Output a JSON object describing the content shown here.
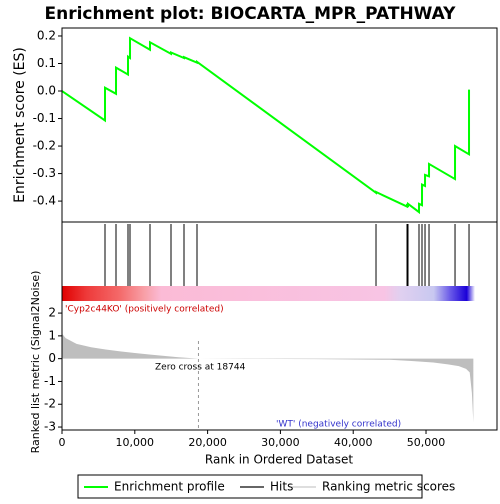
{
  "chart_data": [
    {
      "type": "line",
      "title": "Enrichment plot: BIOCARTA_MPR_PATHWAY",
      "ylabel": "Enrichment score (ES)",
      "xlim": [
        0,
        59750
      ],
      "ylim": [
        -0.476,
        0.229
      ],
      "yticks": [
        0.2,
        0.1,
        {
          "value": 0,
          "label": "0.0"
        },
        -0.1,
        -0.2,
        -0.3,
        -0.4
      ],
      "series": [
        {
          "name": "Enrichment profile",
          "color": "#00ff00",
          "x": [
            0,
            5907,
            5907,
            7418,
            7418,
            9066,
            9066,
            9341,
            9341,
            12088,
            12088,
            14973,
            14973,
            16758,
            16758,
            18544,
            18544,
            43132,
            43132,
            47390,
            47390,
            47527,
            47527,
            49038,
            49038,
            49450,
            49450,
            49863,
            49863,
            50412,
            50412,
            53984,
            53984,
            55907,
            55907
          ],
          "values": [
            0,
            -0.107,
            0.012,
            -0.01,
            0.085,
            0.06,
            0.125,
            0.12,
            0.192,
            0.15,
            0.177,
            0.135,
            0.14,
            0.12,
            0.123,
            0.103,
            0.106,
            -0.37,
            -0.367,
            -0.42,
            -0.415,
            -0.417,
            -0.41,
            -0.44,
            -0.41,
            -0.415,
            -0.34,
            -0.345,
            -0.305,
            -0.31,
            -0.265,
            -0.32,
            -0.2,
            -0.23,
            0.005
          ]
        }
      ]
    },
    {
      "type": "hits",
      "xlim": [
        0,
        59750
      ],
      "series": [
        {
          "name": "Hits",
          "color": "#000000",
          "x": [
            5907,
            7418,
            9066,
            9341,
            12088,
            14973,
            16758,
            18544,
            43132,
            47390,
            47527,
            49038,
            49450,
            49863,
            50412,
            53984,
            55907
          ]
        }
      ]
    },
    {
      "type": "area",
      "ylabel": "Ranked list metric (Signal2Noise)",
      "xlabel": "Rank in Ordered Dataset",
      "xlim": [
        0,
        59750
      ],
      "ylim": [
        -3.13,
        2.53
      ],
      "xticks": [
        0,
        {
          "value": 10000,
          "label": "10,000"
        },
        {
          "value": 20000,
          "label": "20,000"
        },
        {
          "value": 30000,
          "label": "30,000"
        },
        {
          "value": 40000,
          "label": "40,000"
        },
        {
          "value": 50000,
          "label": "50,000"
        }
      ],
      "yticks": [
        2,
        1,
        0,
        -1,
        -2,
        -3
      ],
      "positive_label": "'Cyp2c44KO' (positively correlated)",
      "negative_label": "'WT' (negatively correlated)",
      "zero_cross_label": "Zero cross at 18744",
      "zero_cross": 18744,
      "series": [
        {
          "name": "Ranking metric scores",
          "color": "#bebebe",
          "x": [
            0,
            500,
            2000,
            4000,
            6000,
            8000,
            10000,
            12000,
            14000,
            16000,
            18744,
            25000,
            35000,
            45000,
            48000,
            51000,
            53000,
            54500,
            55500,
            56000,
            56300,
            56500
          ],
          "values": [
            1.1,
            0.9,
            0.65,
            0.5,
            0.4,
            0.32,
            0.25,
            0.18,
            0.12,
            0.06,
            0,
            -0.01,
            -0.02,
            -0.05,
            -0.1,
            -0.17,
            -0.25,
            -0.33,
            -0.45,
            -0.6,
            -1.5,
            -2.8
          ]
        }
      ]
    }
  ]
}
